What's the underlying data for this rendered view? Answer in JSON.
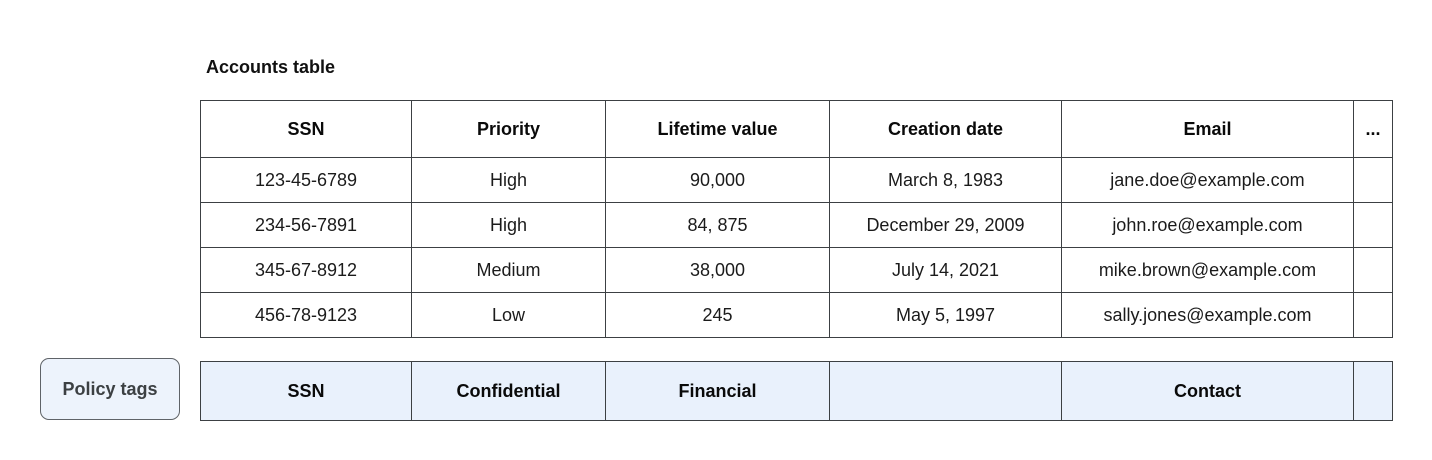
{
  "title": "Accounts table",
  "accounts_table": {
    "columns": [
      "SSN",
      "Priority",
      "Lifetime value",
      "Creation date",
      "Email",
      "..."
    ],
    "rows": [
      [
        "123-45-6789",
        "High",
        "90,000",
        "March 8, 1983",
        "jane.doe@example.com",
        ""
      ],
      [
        "234-56-7891",
        "High",
        "84, 875",
        "December 29, 2009",
        "john.roe@example.com",
        ""
      ],
      [
        "345-67-8912",
        "Medium",
        "38,000",
        "July 14, 2021",
        "mike.brown@example.com",
        ""
      ],
      [
        "456-78-9123",
        "Low",
        "245",
        "May 5, 1997",
        "sally.jones@example.com",
        ""
      ]
    ]
  },
  "policy_tags": {
    "label": "Policy tags",
    "tags": [
      "SSN",
      "Confidential",
      "Financial",
      "",
      "Contact",
      ""
    ]
  },
  "colors": {
    "table_border": "#3c4043",
    "policy_row_background": "#e9f1fc",
    "policy_button_background": "#edf3fc",
    "policy_button_border": "#5f6368",
    "policy_button_text": "#3c4043"
  }
}
